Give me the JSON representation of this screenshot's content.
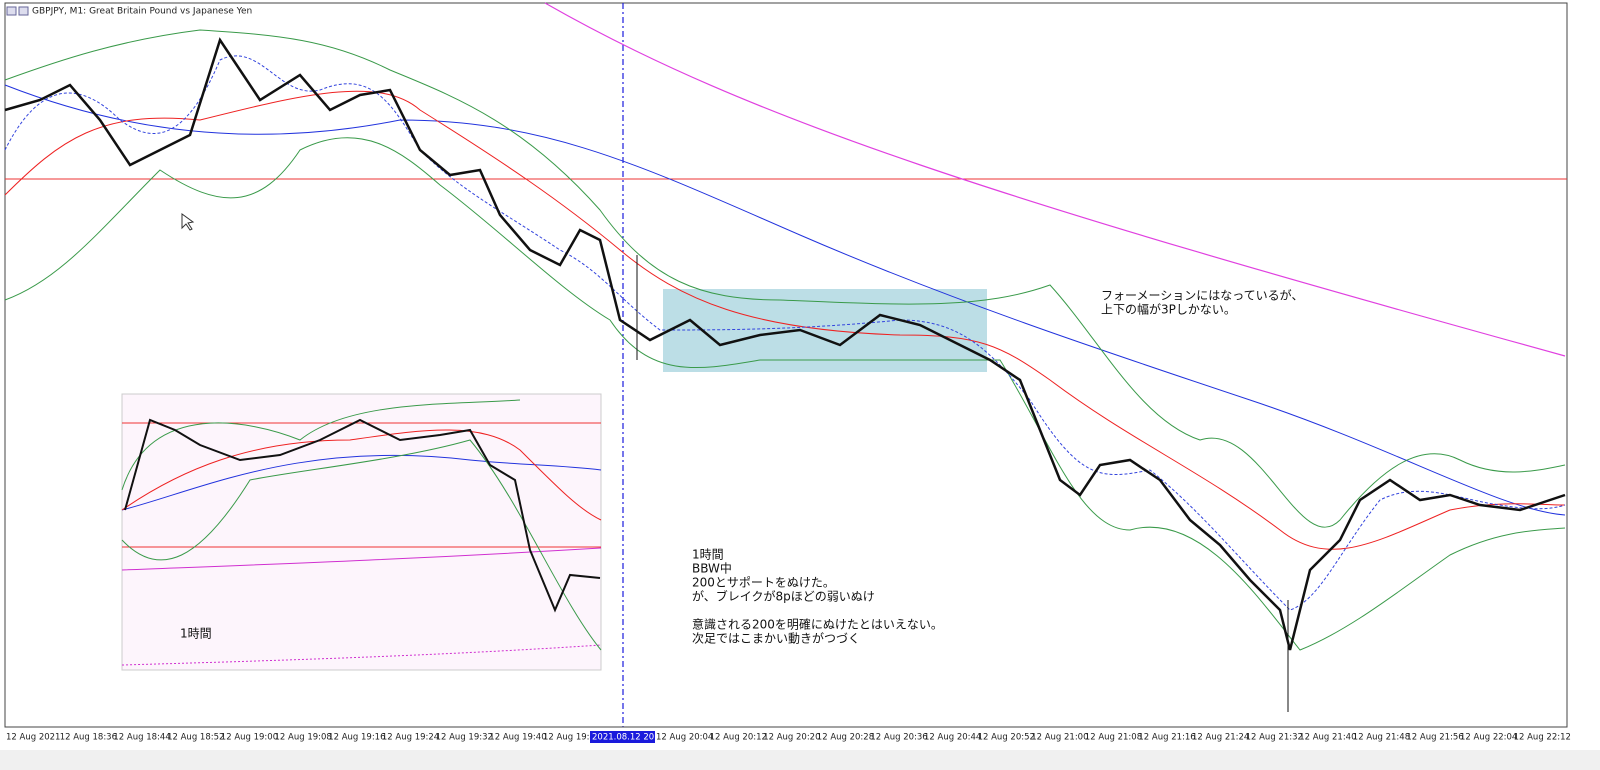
{
  "window": {
    "title": "GBPJPY, M1:  Great Britain Pound vs Japanese Yen"
  },
  "time_axis": {
    "labels": [
      "12 Aug 2021",
      "12 Aug 18:36",
      "12 Aug 18:44",
      "12 Aug 18:52",
      "12 Aug 19:00",
      "12 Aug 19:08",
      "12 Aug 19:16",
      "12 Aug 19:24",
      "12 Aug 19:32",
      "12 Aug 19:40",
      "12 Aug 19:48",
      "2021.08.12 20:00",
      "12 Aug 20:04",
      "12 Aug 20:12",
      "12 Aug 20:20",
      "12 Aug 20:28",
      "12 Aug 20:36",
      "12 Aug 20:44",
      "12 Aug 20:52",
      "12 Aug 21:00",
      "12 Aug 21:08",
      "12 Aug 21:16",
      "12 Aug 21:24",
      "12 Aug 21:32",
      "12 Aug 21:40",
      "12 Aug 21:48",
      "12 Aug 21:56",
      "12 Aug 22:04",
      "12 Aug 22:12"
    ]
  },
  "annotations": {
    "formation": [
      "フォーメーションにはなっているが、",
      "上下の幅が3Pしかない。"
    ],
    "note": [
      "1時間",
      "BBW中",
      "200とサポートをぬけた。",
      "が、ブレイクが8pほどの弱いぬけ",
      "意識される200を明確にぬけたとはいえない。",
      "次足ではこまかい動きがつづく"
    ],
    "inset_label": "1時間"
  }
}
